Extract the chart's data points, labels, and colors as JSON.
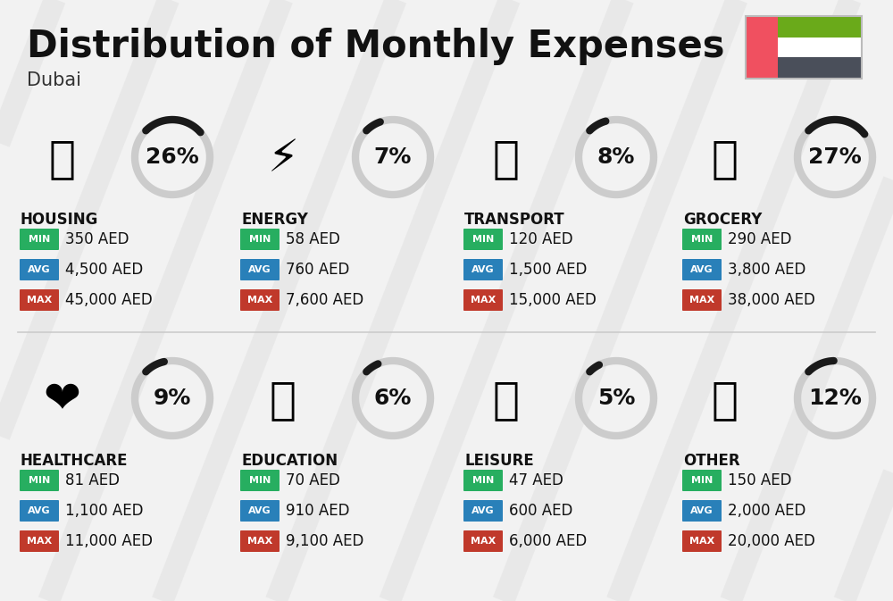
{
  "title": "Distribution of Monthly Expenses",
  "subtitle": "Dubai",
  "background_color": "#f2f2f2",
  "categories": [
    {
      "name": "HOUSING",
      "pct": 26,
      "min": "350 AED",
      "avg": "4,500 AED",
      "max": "45,000 AED",
      "icon": "🏗",
      "row": 0,
      "col": 0
    },
    {
      "name": "ENERGY",
      "pct": 7,
      "min": "58 AED",
      "avg": "760 AED",
      "max": "7,600 AED",
      "icon": "⚡",
      "row": 0,
      "col": 1
    },
    {
      "name": "TRANSPORT",
      "pct": 8,
      "min": "120 AED",
      "avg": "1,500 AED",
      "max": "15,000 AED",
      "icon": "🚌",
      "row": 0,
      "col": 2
    },
    {
      "name": "GROCERY",
      "pct": 27,
      "min": "290 AED",
      "avg": "3,800 AED",
      "max": "38,000 AED",
      "icon": "🛒",
      "row": 0,
      "col": 3
    },
    {
      "name": "HEALTHCARE",
      "pct": 9,
      "min": "81 AED",
      "avg": "1,100 AED",
      "max": "11,000 AED",
      "icon": "❤️",
      "row": 1,
      "col": 0
    },
    {
      "name": "EDUCATION",
      "pct": 6,
      "min": "70 AED",
      "avg": "910 AED",
      "max": "9,100 AED",
      "icon": "🎓",
      "row": 1,
      "col": 1
    },
    {
      "name": "LEISURE",
      "pct": 5,
      "min": "47 AED",
      "avg": "600 AED",
      "max": "6,000 AED",
      "icon": "🛍",
      "row": 1,
      "col": 2
    },
    {
      "name": "OTHER",
      "pct": 12,
      "min": "150 AED",
      "avg": "2,000 AED",
      "max": "20,000 AED",
      "icon": "👜",
      "row": 1,
      "col": 3
    }
  ],
  "min_color": "#27ae60",
  "avg_color": "#2980b9",
  "max_color": "#c0392b",
  "arc_dark": "#1a1a1a",
  "arc_light": "#cccccc",
  "title_fontsize": 30,
  "subtitle_fontsize": 15,
  "cat_fontsize": 12,
  "val_fontsize": 12,
  "pct_fontsize": 18,
  "flag_red": "#f05060",
  "flag_green": "#6aaa1a",
  "flag_white": "#ffffff",
  "flag_dark": "#4a4f5a"
}
